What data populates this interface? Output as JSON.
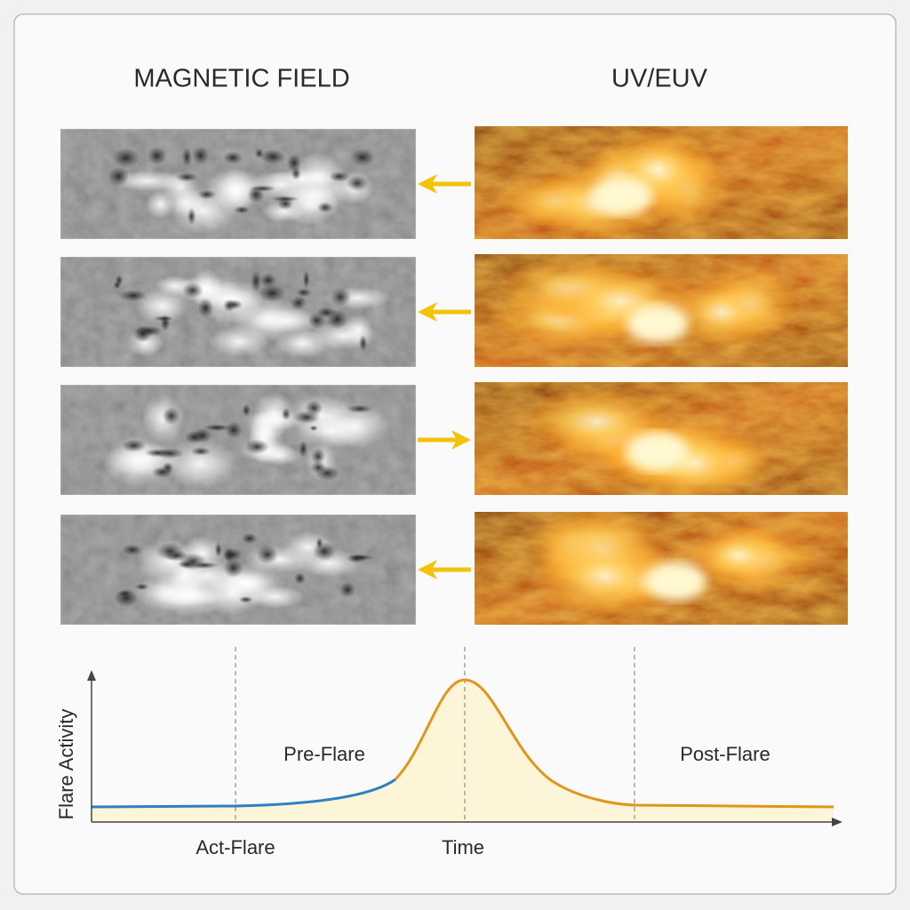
{
  "headers": {
    "left": "MAGNETIC FIELD",
    "right": "UV/EUV"
  },
  "timeline": {
    "y_label": "Flare Activity",
    "x_label": "Time",
    "phases": {
      "pre": "Pre-Flare",
      "post": "Post-Flare",
      "act": "Act-Flare"
    }
  }
}
